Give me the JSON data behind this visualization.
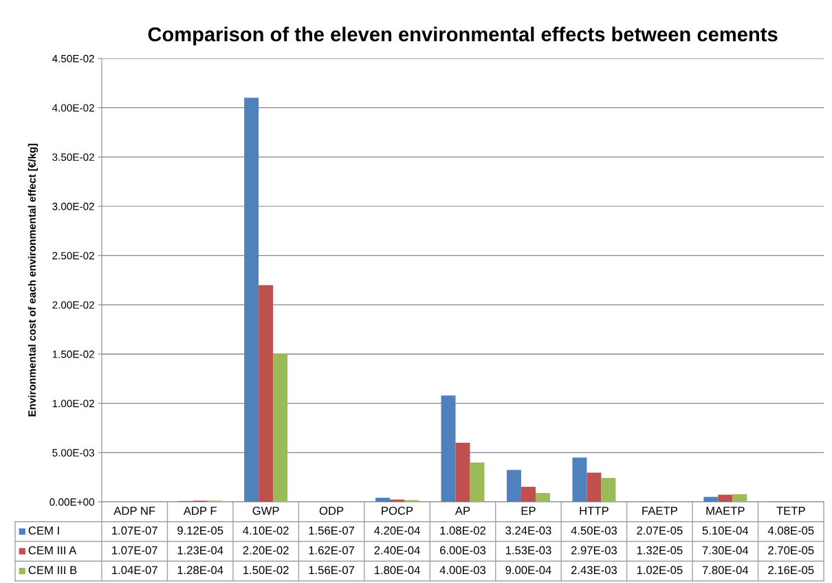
{
  "chart_data": {
    "type": "bar",
    "title": "Comparison of the eleven environmental effects between cements",
    "ylabel": "Environmental cost of each environmental effect [€/kg]",
    "categories": [
      "ADP NF",
      "ADP F",
      "GWP",
      "ODP",
      "POCP",
      "AP",
      "EP",
      "HTTP",
      "FAETP",
      "MAETP",
      "TETP"
    ],
    "series": [
      {
        "name": "CEM I",
        "color": "#4f81bd",
        "values": [
          1.07e-07,
          9.12e-05,
          0.041,
          1.56e-07,
          0.00042,
          0.0108,
          0.00324,
          0.0045,
          2.07e-05,
          0.00051,
          4.08e-05
        ],
        "value_labels": [
          "1.07E-07",
          "9.12E-05",
          "4.10E-02",
          "1.56E-07",
          "4.20E-04",
          "1.08E-02",
          "3.24E-03",
          "4.50E-03",
          "2.07E-05",
          "5.10E-04",
          "4.08E-05"
        ]
      },
      {
        "name": "CEM III A",
        "color": "#c0504d",
        "values": [
          1.07e-07,
          0.000123,
          0.022,
          1.62e-07,
          0.00024,
          0.006,
          0.00153,
          0.00297,
          1.32e-05,
          0.00073,
          2.7e-05
        ],
        "value_labels": [
          "1.07E-07",
          "1.23E-04",
          "2.20E-02",
          "1.62E-07",
          "2.40E-04",
          "6.00E-03",
          "1.53E-03",
          "2.97E-03",
          "1.32E-05",
          "7.30E-04",
          "2.70E-05"
        ]
      },
      {
        "name": "CEM III B",
        "color": "#9bbb59",
        "values": [
          1.04e-07,
          0.000128,
          0.015,
          1.56e-07,
          0.00018,
          0.004,
          0.0009,
          0.00243,
          1.02e-05,
          0.00078,
          2.16e-05
        ],
        "value_labels": [
          "1.04E-07",
          "1.28E-04",
          "1.50E-02",
          "1.56E-07",
          "1.80E-04",
          "4.00E-03",
          "9.00E-04",
          "2.43E-03",
          "1.02E-05",
          "7.80E-04",
          "2.16E-05"
        ]
      }
    ],
    "ylim": [
      0,
      0.045
    ],
    "yticks": [
      {
        "value": 0,
        "label": "0.00E+00"
      },
      {
        "value": 0.005,
        "label": "5.00E-03"
      },
      {
        "value": 0.01,
        "label": "1.00E-02"
      },
      {
        "value": 0.015,
        "label": "1.50E-02"
      },
      {
        "value": 0.02,
        "label": "2.00E-02"
      },
      {
        "value": 0.025,
        "label": "2.50E-02"
      },
      {
        "value": 0.03,
        "label": "3.00E-02"
      },
      {
        "value": 0.035,
        "label": "3.50E-02"
      },
      {
        "value": 0.04,
        "label": "4.00E-02"
      },
      {
        "value": 0.045,
        "label": "4.50E-02"
      }
    ],
    "grid": "y",
    "legend": "bottom left"
  }
}
